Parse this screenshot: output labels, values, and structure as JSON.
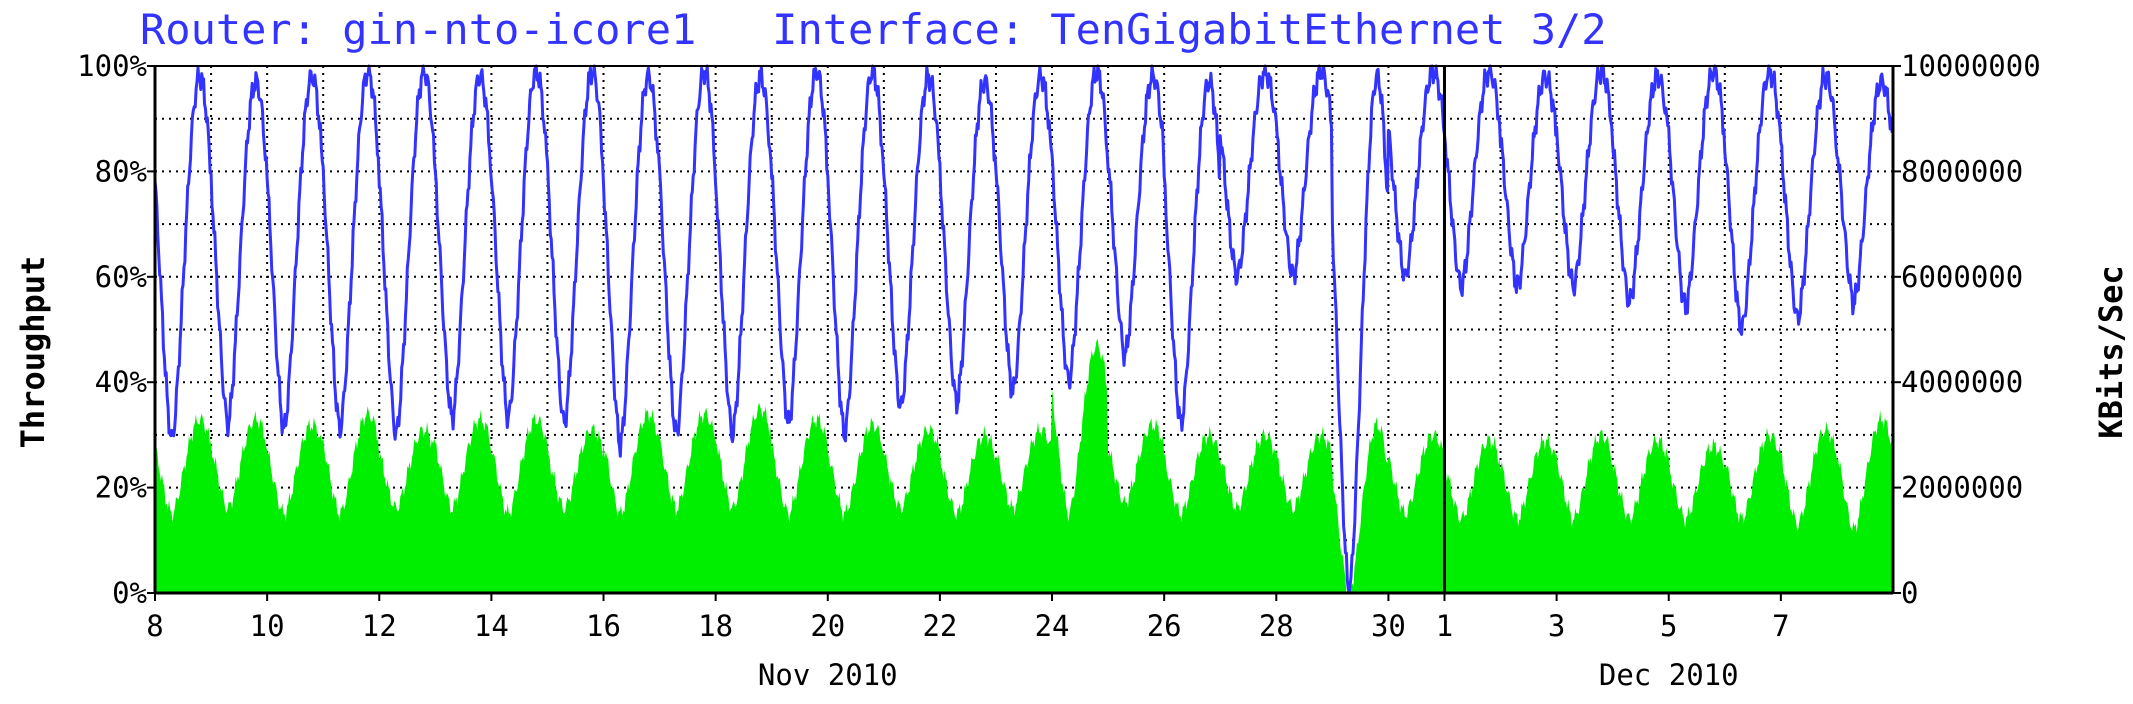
{
  "chart_data": {
    "type": "area",
    "title": "Router: gin-nto-icore1   Interface: TenGigabitEthernet 3/2",
    "ylabel": "Throughput",
    "ylabel_right": "KBits/Sec",
    "ylim": [
      0,
      100
    ],
    "ylim_right": [
      0,
      10000000
    ],
    "y_ticks": [
      "0%",
      "20%",
      "40%",
      "60%",
      "80%",
      "100%"
    ],
    "y_ticks_right": [
      "0",
      "2000000",
      "4000000",
      "6000000",
      "8000000",
      "10000000"
    ],
    "x_ticks": [
      "8",
      "10",
      "12",
      "14",
      "16",
      "18",
      "20",
      "22",
      "24",
      "26",
      "28",
      "30",
      "1",
      "3",
      "5",
      "7"
    ],
    "x_groups": [
      "Nov 2010",
      "Dec 2010"
    ],
    "x_range": [
      "2010-11-08",
      "2010-12-09"
    ],
    "grid": true,
    "legend": "none",
    "colors": {
      "series1": "#3333ff",
      "series2": "#00ee00",
      "title": "#3333ff",
      "axes": "#000000"
    },
    "series": [
      {
        "x": [
          "2010-11-08",
          "2010-11-09",
          "2010-11-10",
          "2010-11-11",
          "2010-11-12",
          "2010-11-13",
          "2010-11-14",
          "2010-11-15",
          "2010-11-16",
          "2010-11-17",
          "2010-11-18",
          "2010-11-19",
          "2010-11-20",
          "2010-11-21",
          "2010-11-22",
          "2010-11-23",
          "2010-11-24",
          "2010-11-25",
          "2010-11-26",
          "2010-11-27",
          "2010-11-28",
          "2010-11-29",
          "2010-11-30",
          "2010-12-01",
          "2010-12-02",
          "2010-12-03",
          "2010-12-04",
          "2010-12-05",
          "2010-12-06",
          "2010-12-07",
          "2010-12-08"
        ],
        "peak": [
          98,
          97,
          98,
          99,
          99,
          98,
          99,
          99,
          98,
          99,
          98,
          99,
          99,
          98,
          97,
          98,
          99,
          98,
          97,
          99,
          99,
          98,
          99,
          99,
          98,
          99,
          98,
          99,
          99,
          98,
          97
        ],
        "trough": [
          29,
          32,
          31,
          31,
          30,
          33,
          33,
          32,
          28,
          30,
          30,
          32,
          30,
          35,
          36,
          38,
          40,
          45,
          32,
          60,
          60,
          0,
          60,
          58,
          58,
          58,
          55,
          54,
          50,
          52,
          55
        ]
      },
      {
        "x": [
          "2010-11-08",
          "2010-11-09",
          "2010-11-10",
          "2010-11-11",
          "2010-11-12",
          "2010-11-13",
          "2010-11-14",
          "2010-11-15",
          "2010-11-16",
          "2010-11-17",
          "2010-11-18",
          "2010-11-19",
          "2010-11-20",
          "2010-11-21",
          "2010-11-22",
          "2010-11-23",
          "2010-11-24",
          "2010-11-25",
          "2010-11-26",
          "2010-11-27",
          "2010-11-28",
          "2010-11-29",
          "2010-11-30",
          "2010-12-01",
          "2010-12-02",
          "2010-12-03",
          "2010-12-04",
          "2010-12-05",
          "2010-12-06",
          "2010-12-07",
          "2010-12-08"
        ],
        "peak": [
          33,
          33,
          32,
          34,
          31,
          33,
          33,
          31,
          34,
          34,
          35,
          33,
          32,
          31,
          30,
          31,
          47,
          32,
          30,
          30,
          30,
          32,
          30,
          29,
          29,
          30,
          29,
          28,
          30,
          31,
          33
        ],
        "trough": [
          15,
          16,
          15,
          15,
          16,
          16,
          15,
          16,
          15,
          16,
          16,
          15,
          15,
          16,
          15,
          16,
          15,
          17,
          15,
          16,
          16,
          0,
          15,
          14,
          14,
          14,
          14,
          14,
          14,
          13,
          12
        ]
      }
    ]
  }
}
